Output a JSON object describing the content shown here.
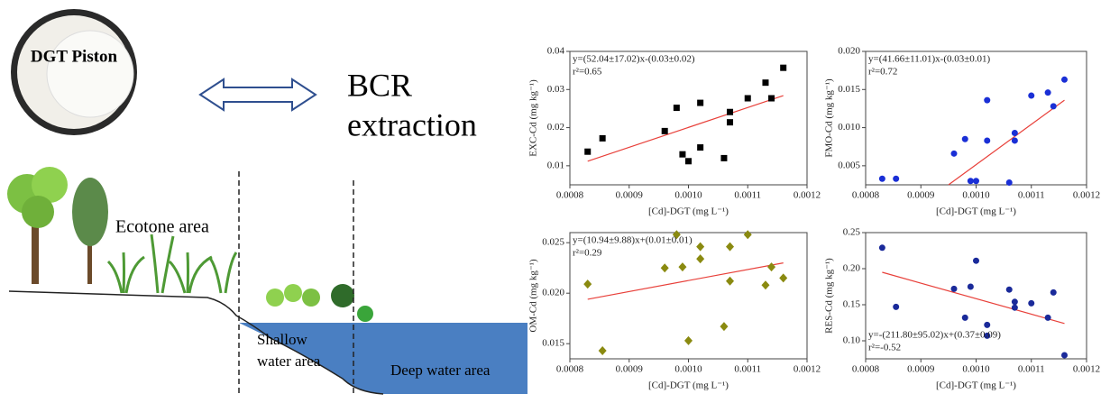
{
  "illustration": {
    "piston": "DGT Piston",
    "method": [
      "BCR",
      "extraction"
    ],
    "ecotone": "Ecotone area",
    "shallow": [
      "Shallow",
      "water area"
    ],
    "deep": "Deep water area"
  },
  "chart_data": [
    {
      "type": "scatter",
      "equation": "y=(52.04±17.02)x-(0.03±0.02)",
      "r2": "r²=0.65",
      "xlabel": "[Cd]-DGT (mg L⁻¹)",
      "ylabel": "EXC-Cd (mg kg⁻¹)",
      "marker": "square",
      "color": "#000000",
      "line_color": "#e8403a",
      "x": [
        0.00083,
        0.000855,
        0.00096,
        0.00098,
        0.00099,
        0.001,
        0.00102,
        0.00102,
        0.00106,
        0.00107,
        0.00107,
        0.0011,
        0.00113,
        0.00114,
        0.00116
      ],
      "values": [
        0.0137,
        0.0172,
        0.0191,
        0.0252,
        0.013,
        0.0112,
        0.0148,
        0.0265,
        0.012,
        0.0214,
        0.0241,
        0.0277,
        0.0318,
        0.0277,
        0.0357
      ],
      "trend": {
        "x": [
          0.00083,
          0.00116
        ],
        "values": [
          0.0112,
          0.0284
        ]
      },
      "xlim": [
        0.0008,
        0.0012
      ],
      "ylim": [
        0.005,
        0.04
      ],
      "xticks": [
        0.0008,
        0.0009,
        {
          "value": 0.001,
          "label": "0.0010"
        },
        0.0011,
        0.0012
      ],
      "yticks": [
        0.01,
        0.02,
        0.03,
        0.04
      ]
    },
    {
      "type": "scatter",
      "equation": "y=(41.66±11.01)x-(0.03±0.01)",
      "r2": "r²=0.72",
      "xlabel": "[Cd]-DGT (mg L⁻¹)",
      "ylabel": "FMO-Cd (mg kg⁻¹)",
      "marker": "circle",
      "color": "#1a2fd6",
      "line_color": "#e8403a",
      "x": [
        0.00083,
        0.000855,
        0.00096,
        0.00098,
        0.00099,
        0.001,
        0.00102,
        0.00102,
        0.00106,
        0.00107,
        0.00107,
        0.0011,
        0.00113,
        0.00114,
        0.00116
      ],
      "values": [
        0.0033,
        0.0033,
        0.0066,
        0.0085,
        0.003,
        0.003,
        0.0083,
        0.0136,
        0.0028,
        0.0083,
        0.0093,
        0.0142,
        0.0146,
        0.0128,
        0.0163
      ],
      "trend": {
        "x": [
          0.00095,
          0.00116
        ],
        "values": [
          0.0025,
          0.0136
        ]
      },
      "xlim": [
        0.0008,
        0.0012
      ],
      "ylim": [
        0.0025,
        0.02
      ],
      "xticks": [
        0.0008,
        0.0009,
        {
          "value": 0.001,
          "label": "0.0010"
        },
        0.0011,
        0.0012
      ],
      "yticks": [
        0.005,
        {
          "value": 0.01,
          "label": "0.010"
        },
        0.015,
        {
          "value": 0.02,
          "label": "0.020"
        }
      ]
    },
    {
      "type": "scatter",
      "equation": "y=(10.94±9.88)x+(0.01±0.01)",
      "r2": "r²=0.29",
      "xlabel": "[Cd]-DGT (mg L⁻¹)",
      "ylabel": "OM-Cd (mg kg⁻¹)",
      "marker": "diamond",
      "color": "#8a8a10",
      "line_color": "#e8403a",
      "x": [
        0.00083,
        0.000855,
        0.00096,
        0.00098,
        0.00099,
        0.001,
        0.00102,
        0.00102,
        0.00106,
        0.00107,
        0.00107,
        0.0011,
        0.00113,
        0.00114,
        0.00116
      ],
      "values": [
        0.0209,
        0.0143,
        0.0225,
        0.0258,
        0.0226,
        0.0153,
        0.0246,
        0.0234,
        0.0167,
        0.0246,
        0.0212,
        0.0258,
        0.0208,
        0.0226,
        0.0215
      ],
      "trend": {
        "x": [
          0.00083,
          0.00116
        ],
        "values": [
          0.0194,
          0.023
        ]
      },
      "xlim": [
        0.0008,
        0.0012
      ],
      "ylim": [
        0.0135,
        0.026
      ],
      "xticks": [
        0.0008,
        0.0009,
        {
          "value": 0.001,
          "label": "0.0010"
        },
        0.0011,
        0.0012
      ],
      "yticks": [
        0.015,
        {
          "value": 0.02,
          "label": "0.020"
        },
        0.025
      ]
    },
    {
      "type": "scatter",
      "equation": "y=-(211.80±95.02)x+(0.37±0.09)",
      "r2": "r²=-0.52",
      "xlabel": "[Cd]-DGT (mg L⁻¹)",
      "ylabel": "RES-Cd (mg kg⁻¹)",
      "marker": "circle",
      "color": "#1a2a9a",
      "line_color": "#e8403a",
      "equation_corner": "lower left",
      "x": [
        0.00083,
        0.000855,
        0.00096,
        0.00098,
        0.00099,
        0.001,
        0.00102,
        0.00102,
        0.00106,
        0.00107,
        0.00107,
        0.0011,
        0.00113,
        0.00114,
        0.00116
      ],
      "values": [
        0.229,
        0.147,
        0.172,
        0.132,
        0.175,
        0.211,
        0.122,
        0.107,
        0.171,
        0.146,
        0.154,
        0.152,
        0.132,
        0.167,
        0.08
      ],
      "trend": {
        "x": [
          0.00083,
          0.00116
        ],
        "values": [
          0.195,
          0.124
        ]
      },
      "xlim": [
        0.0008,
        0.0012
      ],
      "ylim": [
        0.075,
        0.25
      ],
      "xticks": [
        0.0008,
        0.0009,
        {
          "value": 0.001,
          "label": "0.0010"
        },
        0.0011,
        0.0012
      ],
      "yticks": [
        {
          "value": 0.1,
          "label": "0.10"
        },
        0.15,
        {
          "value": 0.2,
          "label": "0.20"
        },
        0.25
      ]
    }
  ]
}
